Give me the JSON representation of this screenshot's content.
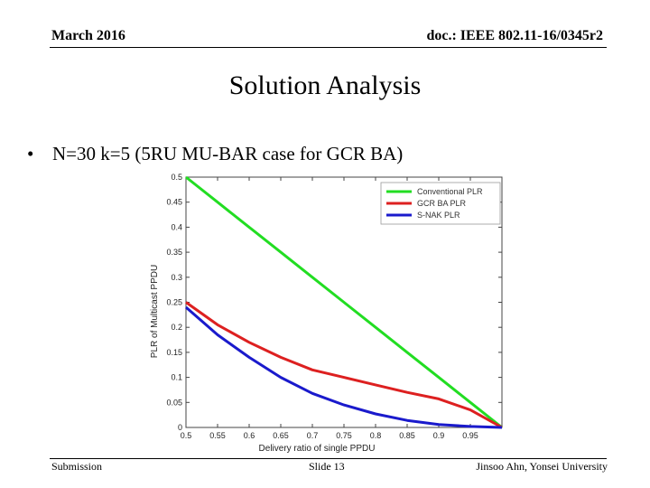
{
  "header": {
    "date": "March 2016",
    "doc": "doc.: IEEE 802.11-16/0345r2"
  },
  "slide": {
    "title": "Solution Analysis",
    "bullet_symbol": "•",
    "bullet": "N=30 k=5 (5RU MU-BAR case for GCR BA)"
  },
  "footer": {
    "left": "Submission",
    "center": "Slide 13",
    "right": "Jinsoo Ahn, Yonsei University"
  },
  "chart_data": {
    "type": "line",
    "xlabel": "Delivery ratio of single PPDU",
    "ylabel": "PLR of Multicast PPDU",
    "xlim": [
      0.5,
      1.0
    ],
    "ylim": [
      0,
      0.5
    ],
    "xticks": [
      "0.5",
      "0.55",
      "0.6",
      "0.65",
      "0.7",
      "0.75",
      "0.8",
      "0.85",
      "0.9",
      "0.95"
    ],
    "yticks": [
      "0",
      "0.05",
      "0.1",
      "0.15",
      "0.2",
      "0.25",
      "0.3",
      "0.35",
      "0.4",
      "0.45",
      "0.5"
    ],
    "legend_position": "top-right",
    "grid": false,
    "x": [
      0.5,
      0.55,
      0.6,
      0.65,
      0.7,
      0.75,
      0.8,
      0.85,
      0.9,
      0.95,
      1.0
    ],
    "series": [
      {
        "name": "Conventional PLR",
        "color": "#22dd22",
        "values": [
          0.5,
          0.45,
          0.4,
          0.35,
          0.3,
          0.25,
          0.2,
          0.15,
          0.1,
          0.05,
          0.0
        ]
      },
      {
        "name": "GCR BA PLR",
        "color": "#dd2020",
        "values": [
          0.25,
          0.205,
          0.17,
          0.14,
          0.115,
          0.1,
          0.085,
          0.07,
          0.057,
          0.035,
          0.0
        ]
      },
      {
        "name": "S-NAK PLR",
        "color": "#1a1acc",
        "values": [
          0.24,
          0.185,
          0.14,
          0.1,
          0.068,
          0.045,
          0.027,
          0.014,
          0.006,
          0.002,
          0.0
        ]
      }
    ]
  }
}
